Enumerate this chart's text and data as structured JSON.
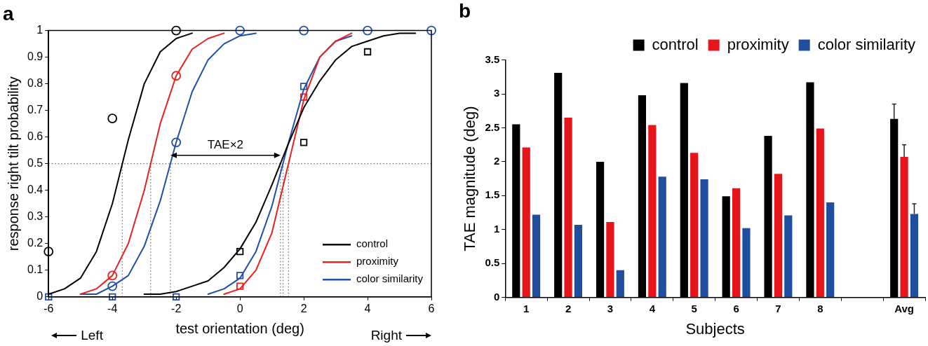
{
  "chart_data": [
    {
      "type": "line",
      "title": "a",
      "xlabel": "test orientation (deg)",
      "ylabel": "response right tilt probability",
      "series": [
        {
          "name": "control",
          "color": "#000000",
          "marker": "none",
          "x": [
            -6,
            -5.5,
            -5,
            -4.5,
            -4,
            -3.5,
            -3,
            -2.5,
            -2,
            -1.5
          ],
          "values": [
            0.01,
            0.03,
            0.07,
            0.17,
            0.35,
            0.59,
            0.8,
            0.92,
            0.97,
            0.99
          ]
        },
        {
          "name": "proximity",
          "color": "#e8201f",
          "marker": "none",
          "x": [
            -5,
            -4.5,
            -4,
            -3.5,
            -3,
            -2.5,
            -2,
            -1.5,
            -1,
            -0.5
          ],
          "values": [
            0.01,
            0.03,
            0.08,
            0.2,
            0.4,
            0.65,
            0.83,
            0.93,
            0.97,
            0.99
          ]
        },
        {
          "name": "color similarity",
          "color": "#1f4fa8",
          "marker": "none",
          "x": [
            -5,
            -4.5,
            -4,
            -3.5,
            -3,
            -2.5,
            -2,
            -1.5,
            -1,
            -0.5,
            0,
            0.5
          ],
          "values": [
            0.01,
            0.01,
            0.04,
            0.08,
            0.19,
            0.36,
            0.58,
            0.77,
            0.89,
            0.95,
            0.98,
            0.99
          ]
        },
        {
          "color": "#000000",
          "marker": "none",
          "x": [
            -3,
            -2.5,
            -2,
            -1.5,
            -1,
            -0.5,
            0,
            0.5,
            1,
            1.5,
            2,
            2.5,
            3,
            3.5,
            4,
            4.5,
            5,
            5.5
          ],
          "values": [
            0.01,
            0.01,
            0.02,
            0.04,
            0.06,
            0.11,
            0.18,
            0.28,
            0.42,
            0.57,
            0.71,
            0.81,
            0.89,
            0.94,
            0.96,
            0.98,
            0.99,
            0.99
          ]
        },
        {
          "color": "#e8201f",
          "marker": "none",
          "x": [
            -0.5,
            0,
            0.5,
            1,
            1.5,
            2,
            2.5,
            3,
            3.5
          ],
          "values": [
            0.01,
            0.03,
            0.1,
            0.24,
            0.49,
            0.74,
            0.9,
            0.96,
            0.99
          ]
        },
        {
          "color": "#1f4fa8",
          "marker": "none",
          "x": [
            -1,
            -0.5,
            0,
            0.5,
            1,
            1.5,
            2,
            2.5,
            3,
            3.5
          ],
          "values": [
            0.01,
            0.03,
            0.07,
            0.17,
            0.34,
            0.57,
            0.78,
            0.9,
            0.96,
            0.98
          ]
        },
        {
          "type": "scatter",
          "color": "#000000",
          "marker": "circle",
          "x": [
            -6,
            -4,
            -2
          ],
          "values": [
            0.17,
            0.67,
            1
          ]
        },
        {
          "type": "scatter",
          "color": "#e8201f",
          "marker": "circle",
          "x": [
            -4,
            -2
          ],
          "values": [
            0.08,
            0.83
          ]
        },
        {
          "type": "scatter",
          "color": "#1f4fa8",
          "marker": "circle",
          "x": [
            -4,
            -2,
            0,
            2,
            4,
            6
          ],
          "values": [
            0.04,
            0.58,
            1,
            1,
            1,
            1
          ]
        },
        {
          "type": "scatter",
          "color": "#000000",
          "marker": "square",
          "x": [
            0,
            2,
            4
          ],
          "values": [
            0.17,
            0.58,
            0.92
          ]
        },
        {
          "type": "scatter",
          "color": "#e8201f",
          "marker": "square",
          "x": [
            0,
            2
          ],
          "values": [
            0.04,
            0.75
          ]
        },
        {
          "type": "scatter",
          "color": "#1f4fa8",
          "marker": "square",
          "x": [
            -6,
            -4,
            -2,
            0,
            2
          ],
          "values": [
            0,
            0,
            0,
            0.08,
            0.79
          ]
        }
      ],
      "xlim": [
        -6,
        6
      ],
      "xticks": [
        -6,
        -4,
        -2,
        0,
        2,
        4,
        6
      ],
      "ylim": [
        0,
        1
      ],
      "yticks": [
        0,
        0.1,
        0.2,
        0.3,
        0.4,
        0.5,
        0.6,
        0.7,
        0.8,
        0.9,
        1
      ],
      "ref_lines": [
        {
          "axis": "y",
          "value": 0.5,
          "color": "#666666",
          "line_style": "dotted"
        },
        {
          "axis": "x",
          "value": -3.69,
          "color": "#666666",
          "line_style": "dotted"
        },
        {
          "axis": "x",
          "value": -2.8,
          "color": "#666666",
          "line_style": "dotted"
        },
        {
          "axis": "x",
          "value": -2.18,
          "color": "#666666",
          "line_style": "dotted"
        },
        {
          "axis": "x",
          "value": 1.27,
          "color": "#666666",
          "line_style": "dotted"
        },
        {
          "axis": "x",
          "value": 1.35,
          "color": "#666666",
          "line_style": "dotted"
        },
        {
          "axis": "x",
          "value": 1.52,
          "color": "#666666",
          "line_style": "dotted"
        }
      ],
      "annotations": [
        "TAE×2",
        "Left",
        "Right"
      ],
      "grid": false,
      "legend": "bottom right"
    },
    {
      "type": "bar",
      "title": "b",
      "xlabel": "Subjects",
      "ylabel": "TAE magnitude (deg)",
      "categories": [
        "1",
        "2",
        "3",
        "4",
        "5",
        "6",
        "7",
        "8",
        null,
        "Avg"
      ],
      "series": [
        {
          "name": "control",
          "color": "#000000",
          "values": [
            2.55,
            3.31,
            2.0,
            2.98,
            3.16,
            1.49,
            2.38,
            3.17,
            null,
            2.63
          ],
          "errors": [
            null,
            null,
            null,
            null,
            null,
            null,
            null,
            null,
            null,
            [
              2.63,
              2.85
            ]
          ]
        },
        {
          "name": "proximity",
          "color": "#e8141b",
          "values": [
            2.21,
            2.65,
            1.11,
            2.54,
            2.13,
            1.61,
            1.82,
            2.49,
            null,
            2.07
          ],
          "errors": [
            null,
            null,
            null,
            null,
            null,
            null,
            null,
            null,
            null,
            [
              2.07,
              2.25
            ]
          ]
        },
        {
          "name": "color similarity",
          "color": "#1f4e9e",
          "values": [
            1.22,
            1.07,
            0.4,
            1.78,
            1.74,
            1.02,
            1.21,
            1.4,
            null,
            1.23
          ],
          "errors": [
            null,
            null,
            null,
            null,
            null,
            null,
            null,
            null,
            null,
            [
              1.23,
              1.38
            ]
          ]
        }
      ],
      "ylim": [
        0,
        3.5
      ],
      "yticks": [
        0,
        0.5,
        1,
        1.5,
        2,
        2.5,
        3,
        3.5
      ],
      "grid": false,
      "legend": "top"
    }
  ]
}
